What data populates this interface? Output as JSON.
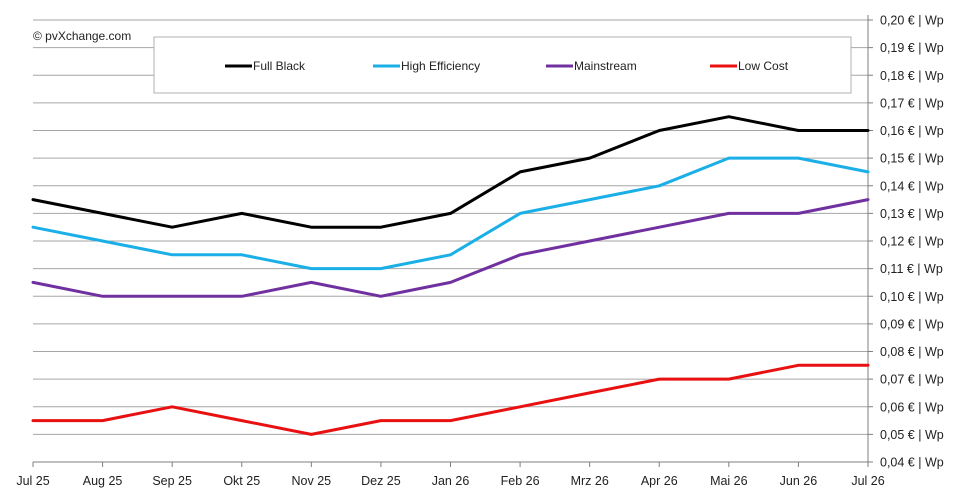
{
  "copyright": "© pvXchange.com",
  "chart_data": {
    "type": "line",
    "title": "",
    "xlabel": "",
    "ylabel": "",
    "x": [
      "Jul 25",
      "Aug 25",
      "Sep 25",
      "Okt 25",
      "Nov 25",
      "Dez 25",
      "Jan 26",
      "Feb 26",
      "Mrz 26",
      "Apr 26",
      "Mai 26",
      "Jun 26",
      "Jul 26"
    ],
    "ylim": [
      0.04,
      0.2
    ],
    "y_tick_step": 0.01,
    "y_tick_suffix": " € | Wp",
    "y_axis_side": "right",
    "grid": true,
    "legend_placement": "top",
    "series": [
      {
        "name": "Full Black",
        "color": "#000000",
        "values": [
          0.135,
          0.13,
          0.125,
          0.13,
          0.125,
          0.125,
          0.13,
          0.145,
          0.15,
          0.16,
          0.165,
          0.16,
          0.16
        ]
      },
      {
        "name": "High Efficiency",
        "color": "#1AAFE6",
        "values": [
          0.125,
          0.12,
          0.115,
          0.115,
          0.11,
          0.11,
          0.115,
          0.13,
          0.135,
          0.14,
          0.15,
          0.15,
          0.145
        ]
      },
      {
        "name": "Mainstream",
        "color": "#7030A0",
        "values": [
          0.105,
          0.1,
          0.1,
          0.1,
          0.105,
          0.1,
          0.105,
          0.115,
          0.12,
          0.125,
          0.13,
          0.13,
          0.135
        ]
      },
      {
        "name": "Low Cost",
        "color": "#E81010",
        "values": [
          0.055,
          0.055,
          0.06,
          0.055,
          0.05,
          0.055,
          0.055,
          0.06,
          0.065,
          0.07,
          0.07,
          0.075,
          0.075
        ]
      }
    ]
  }
}
